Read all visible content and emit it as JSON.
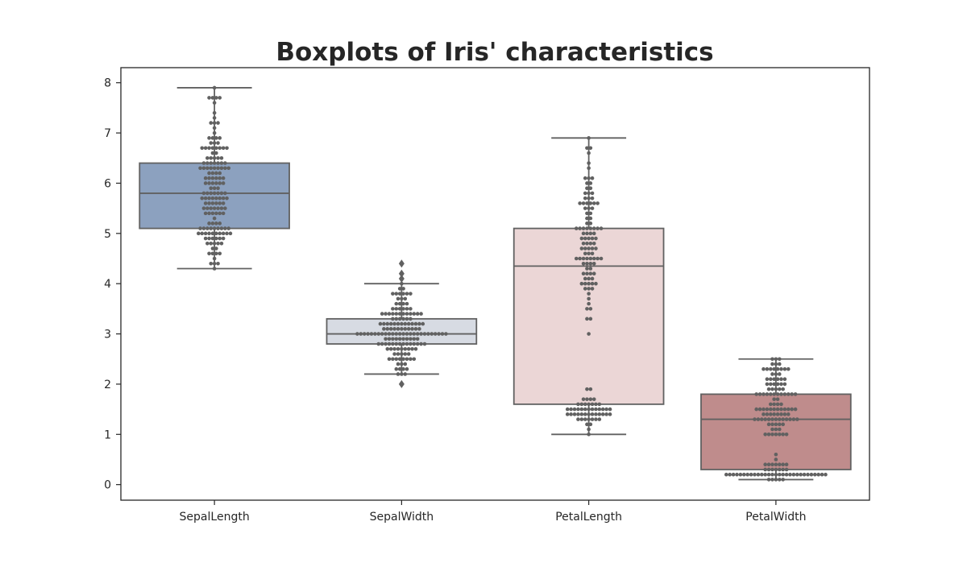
{
  "chart_data": {
    "type": "box",
    "title": "Boxplots of Iris' characteristics",
    "xlabel": "",
    "ylabel": "",
    "ylim": [
      -0.31,
      8.3
    ],
    "yticks": [
      0,
      1,
      2,
      3,
      4,
      5,
      6,
      7,
      8
    ],
    "grid": false,
    "legend": "none",
    "point_color": "#616161",
    "edge_color": "#616161",
    "categories": [
      "SepalLength",
      "SepalWidth",
      "PetalLength",
      "PetalWidth"
    ],
    "boxes": [
      {
        "category": "SepalLength",
        "color": "#8ca1bf",
        "whisker_low": 4.3,
        "q1": 5.1,
        "median": 5.8,
        "q3": 6.4,
        "whisker_high": 7.9,
        "outliers": []
      },
      {
        "category": "SepalWidth",
        "color": "#d7dbe3",
        "whisker_low": 2.2,
        "q1": 2.8,
        "median": 3.0,
        "q3": 3.3,
        "whisker_high": 4.0,
        "outliers": [
          2.0,
          4.1,
          4.2,
          4.4
        ]
      },
      {
        "category": "PetalLength",
        "color": "#ebd6d6",
        "whisker_low": 1.0,
        "q1": 1.6,
        "median": 4.35,
        "q3": 5.1,
        "whisker_high": 6.9,
        "outliers": []
      },
      {
        "category": "PetalWidth",
        "color": "#bf8c8c",
        "whisker_low": 0.1,
        "q1": 0.3,
        "median": 1.3,
        "q3": 1.8,
        "whisker_high": 2.5,
        "outliers": []
      }
    ],
    "swarm_counts": {
      "SepalLength": {
        "4.3": 1,
        "4.4": 3,
        "4.5": 1,
        "4.6": 4,
        "4.7": 2,
        "4.8": 5,
        "4.9": 6,
        "5.0": 10,
        "5.1": 9,
        "5.2": 4,
        "5.3": 1,
        "5.4": 6,
        "5.5": 7,
        "5.6": 6,
        "5.7": 8,
        "5.8": 7,
        "5.9": 3,
        "6.0": 6,
        "6.1": 6,
        "6.2": 4,
        "6.3": 9,
        "6.4": 7,
        "6.5": 5,
        "6.6": 2,
        "6.7": 8,
        "6.8": 3,
        "6.9": 4,
        "7.0": 1,
        "7.1": 1,
        "7.2": 3,
        "7.3": 1,
        "7.4": 1,
        "7.6": 1,
        "7.7": 4,
        "7.9": 1
      },
      "SepalWidth": {
        "2.0": 1,
        "2.2": 3,
        "2.3": 4,
        "2.4": 3,
        "2.5": 8,
        "2.6": 5,
        "2.7": 9,
        "2.8": 14,
        "2.9": 10,
        "3.0": 26,
        "3.1": 11,
        "3.2": 13,
        "3.3": 6,
        "3.4": 12,
        "3.5": 6,
        "3.6": 4,
        "3.7": 3,
        "3.8": 6,
        "3.9": 2,
        "4.0": 1,
        "4.1": 1,
        "4.2": 1,
        "4.4": 1
      },
      "PetalLength": {
        "1.0": 1,
        "1.1": 1,
        "1.2": 2,
        "1.3": 7,
        "1.4": 13,
        "1.5": 13,
        "1.6": 7,
        "1.7": 4,
        "1.9": 2,
        "3.0": 1,
        "3.3": 2,
        "3.5": 2,
        "3.6": 1,
        "3.7": 1,
        "3.8": 1,
        "3.9": 3,
        "4.0": 5,
        "4.1": 3,
        "4.2": 4,
        "4.3": 2,
        "4.4": 4,
        "4.5": 8,
        "4.6": 3,
        "4.7": 5,
        "4.8": 4,
        "4.9": 5,
        "5.0": 4,
        "5.1": 8,
        "5.2": 2,
        "5.3": 2,
        "5.4": 2,
        "5.5": 3,
        "5.6": 6,
        "5.7": 3,
        "5.8": 3,
        "5.9": 2,
        "6.0": 2,
        "6.1": 3,
        "6.3": 1,
        "6.4": 1,
        "6.6": 1,
        "6.7": 2,
        "6.9": 1
      },
      "PetalWidth": {
        "0.1": 5,
        "0.2": 29,
        "0.3": 7,
        "0.4": 7,
        "0.5": 1,
        "0.6": 1,
        "1.0": 7,
        "1.1": 3,
        "1.2": 5,
        "1.3": 13,
        "1.4": 8,
        "1.5": 12,
        "1.6": 4,
        "1.7": 2,
        "1.8": 12,
        "1.9": 5,
        "2.0": 6,
        "2.1": 6,
        "2.2": 3,
        "2.3": 8,
        "2.4": 3,
        "2.5": 3
      }
    }
  }
}
